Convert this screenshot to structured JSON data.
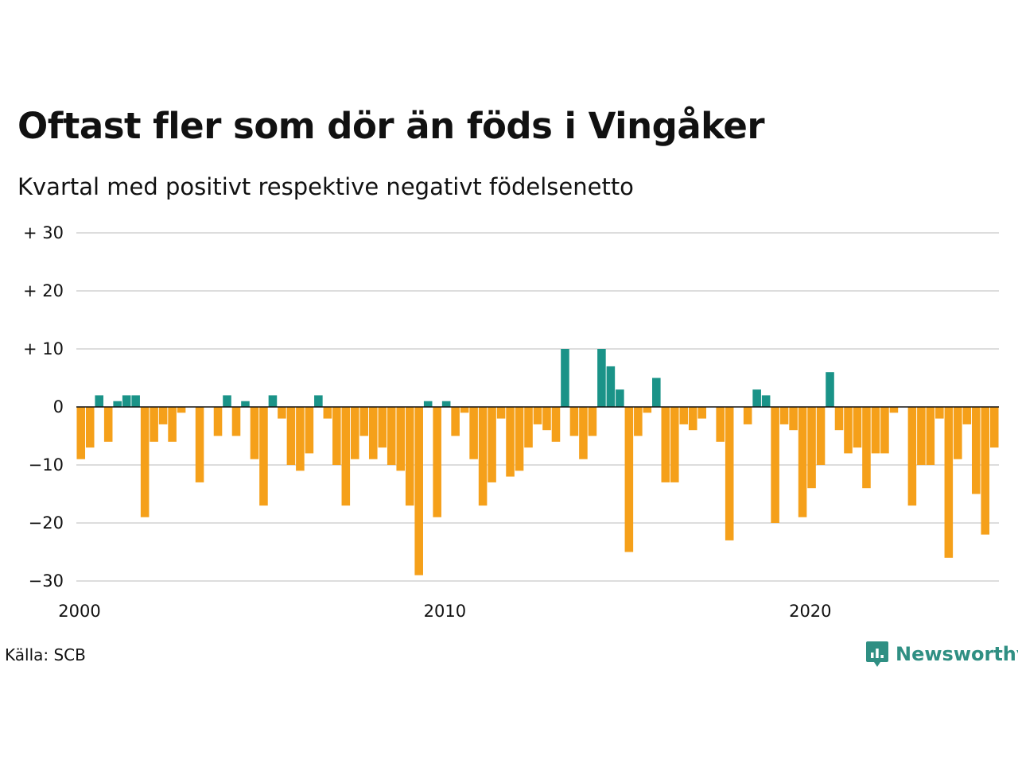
{
  "title": "Oftast fler som dör än föds i Vingåker",
  "subtitle": "Kvartal med positivt respektive negativt födelsenetto",
  "source": "Källa: SCB",
  "brand": {
    "name": "Newsworthy",
    "color": "#2f8f83",
    "icon": "newsworthy-chart-bubble-icon"
  },
  "colors": {
    "positive": "#1a9388",
    "negative": "#f5a01a",
    "grid": "#dddddd",
    "zero_line": "#111111"
  },
  "chart_data": {
    "type": "bar",
    "title": "Oftast fler som dör än föds i Vingåker",
    "subtitle": "Kvartal med positivt respektive negativt födelsenetto",
    "xlabel": "",
    "ylabel": "",
    "ylim": [
      -30,
      30
    ],
    "xlim": [
      2000,
      2025.25
    ],
    "grid": true,
    "y_ticks": [
      {
        "value": 30,
        "label": "+ 30"
      },
      {
        "value": 20,
        "label": "+ 20"
      },
      {
        "value": 10,
        "label": "+ 10"
      },
      {
        "value": 0,
        "label": "0"
      },
      {
        "value": -10,
        "label": "−10"
      },
      {
        "value": -20,
        "label": "−20"
      },
      {
        "value": -30,
        "label": "−30"
      }
    ],
    "x_ticks": [
      {
        "value": 2000,
        "label": "2000"
      },
      {
        "value": 2010,
        "label": "2010"
      },
      {
        "value": 2020,
        "label": "2020"
      }
    ],
    "categories": [
      "2000 K1",
      "2000 K2",
      "2000 K3",
      "2000 K4",
      "2001 K1",
      "2001 K2",
      "2001 K3",
      "2001 K4",
      "2002 K1",
      "2002 K2",
      "2002 K3",
      "2002 K4",
      "2003 K1",
      "2003 K2",
      "2003 K3",
      "2003 K4",
      "2004 K1",
      "2004 K2",
      "2004 K3",
      "2004 K4",
      "2005 K1",
      "2005 K2",
      "2005 K3",
      "2005 K4",
      "2006 K1",
      "2006 K2",
      "2006 K3",
      "2006 K4",
      "2007 K1",
      "2007 K2",
      "2007 K3",
      "2007 K4",
      "2008 K1",
      "2008 K2",
      "2008 K3",
      "2008 K4",
      "2009 K1",
      "2009 K2",
      "2009 K3",
      "2009 K4",
      "2010 K1",
      "2010 K2",
      "2010 K3",
      "2010 K4",
      "2011 K1",
      "2011 K2",
      "2011 K3",
      "2011 K4",
      "2012 K1",
      "2012 K2",
      "2012 K3",
      "2012 K4",
      "2013 K1",
      "2013 K2",
      "2013 K3",
      "2013 K4",
      "2014 K1",
      "2014 K2",
      "2014 K3",
      "2014 K4",
      "2015 K1",
      "2015 K2",
      "2015 K3",
      "2015 K4",
      "2016 K1",
      "2016 K2",
      "2016 K3",
      "2016 K4",
      "2017 K1",
      "2017 K2",
      "2017 K3",
      "2017 K4",
      "2018 K1",
      "2018 K2",
      "2018 K3",
      "2018 K4",
      "2019 K1",
      "2019 K2",
      "2019 K3",
      "2019 K4",
      "2020 K1",
      "2020 K2",
      "2020 K3",
      "2020 K4",
      "2021 K1",
      "2021 K2",
      "2021 K3",
      "2021 K4",
      "2022 K1",
      "2022 K2",
      "2022 K3",
      "2022 K4",
      "2023 K1",
      "2023 K2",
      "2023 K3",
      "2023 K4",
      "2024 K1",
      "2024 K2",
      "2024 K3",
      "2024 K4",
      "2025 K1"
    ],
    "values": [
      -9,
      -7,
      2,
      -6,
      1,
      2,
      2,
      -19,
      -6,
      -3,
      -6,
      -1,
      0,
      -13,
      0,
      -5,
      2,
      -5,
      1,
      -9,
      -17,
      2,
      -2,
      -10,
      -11,
      -8,
      2,
      -2,
      -10,
      -17,
      -9,
      -5,
      -9,
      -7,
      -10,
      -11,
      -17,
      -29,
      1,
      -19,
      1,
      -5,
      -1,
      -9,
      -17,
      -13,
      -2,
      -12,
      -11,
      -7,
      -3,
      -4,
      -6,
      10,
      -5,
      -9,
      -5,
      10,
      7,
      3,
      -25,
      -5,
      -1,
      5,
      -13,
      -13,
      -3,
      -4,
      -2,
      0,
      -6,
      -23,
      0,
      -3,
      3,
      2,
      -20,
      -3,
      -4,
      -19,
      -14,
      -10,
      6,
      -4,
      -8,
      -7,
      -14,
      -8,
      -8,
      -1,
      0,
      -17,
      -10,
      -10,
      -2,
      -26,
      -9,
      -3,
      -15,
      -22,
      -7
    ]
  }
}
